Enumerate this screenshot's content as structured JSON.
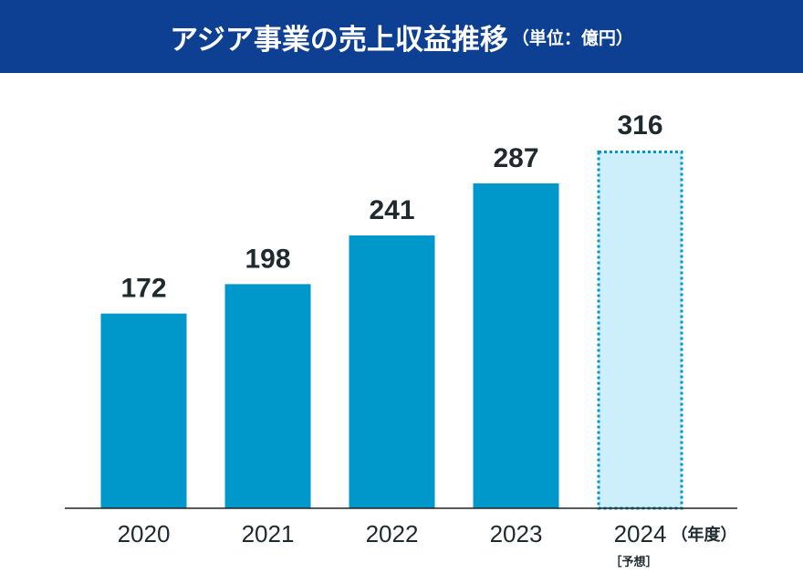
{
  "title": "アジア事業の売上収益推移",
  "title_unit": "（単位：億円）",
  "colors": {
    "header_bg": "#0d3f93",
    "bar": "#0098cb",
    "forecast_fill": "#cdeefb",
    "forecast_border": "#0098cb",
    "text": "#1f2a2e"
  },
  "chart_data": {
    "type": "bar",
    "title": "アジア事業の売上収益推移",
    "unit": "（単位：億円）",
    "categories": [
      "2020",
      "2021",
      "2022",
      "2023",
      "2024"
    ],
    "values": [
      172,
      198,
      241,
      287,
      316
    ],
    "forecast": [
      false,
      false,
      false,
      false,
      true
    ],
    "data_labels": [
      "172",
      "198",
      "241",
      "287",
      "316"
    ],
    "x_unit_label": "（年度）",
    "forecast_label": "［予想］",
    "ylim": [
      0,
      316
    ],
    "grid": false,
    "legend": "none"
  }
}
